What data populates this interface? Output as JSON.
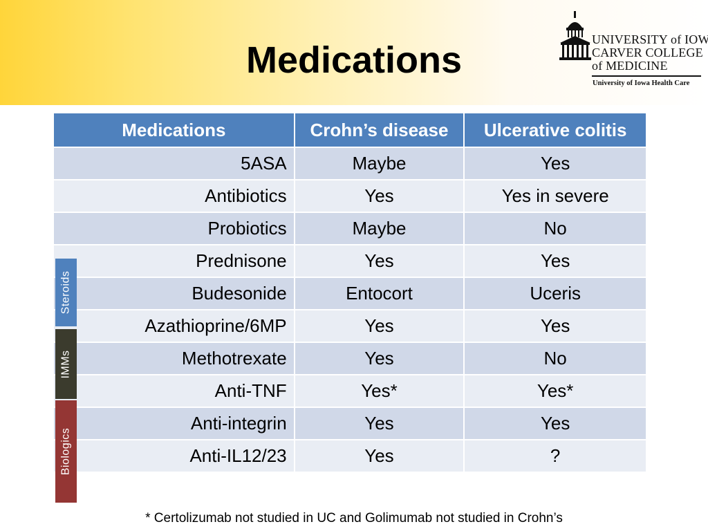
{
  "title": "Medications",
  "logo": {
    "line1": "UNIVERSITY of IOWA",
    "line2": "CARVER COLLEGE",
    "line3": "of MEDICINE",
    "line4": "University of Iowa Health Care"
  },
  "table": {
    "headers": [
      "Medications",
      "Crohn’s disease",
      "Ulcerative colitis"
    ],
    "rows": [
      [
        "5ASA",
        "Maybe",
        "Yes"
      ],
      [
        "Antibiotics",
        "Yes",
        "Yes in severe"
      ],
      [
        "Probiotics",
        "Maybe",
        "No"
      ],
      [
        "Prednisone",
        "Yes",
        "Yes"
      ],
      [
        "Budesonide",
        "Entocort",
        "Uceris"
      ],
      [
        "Azathioprine/6MP",
        "Yes",
        "Yes"
      ],
      [
        "Methotrexate",
        "Yes",
        "No"
      ],
      [
        "Anti-TNF",
        "Yes*",
        "Yes*"
      ],
      [
        "Anti-integrin",
        "Yes",
        "Yes"
      ],
      [
        "Anti-IL12/23",
        "Yes",
        "?"
      ]
    ]
  },
  "categories": {
    "steroids": "Steroids",
    "imms": "IMMs",
    "biologics": "Biologics"
  },
  "footnote": "* Certolizumab not studied in UC and Golimumab not studied in Crohn’s",
  "colors": {
    "header_blue": "#4f81bd",
    "row_dark": "#d0d8e8",
    "row_light": "#e9edf4",
    "steroids": "#4f81bd",
    "imms": "#3b3b2d",
    "biologics": "#943634",
    "banner_yellow": "#ffd53a"
  }
}
